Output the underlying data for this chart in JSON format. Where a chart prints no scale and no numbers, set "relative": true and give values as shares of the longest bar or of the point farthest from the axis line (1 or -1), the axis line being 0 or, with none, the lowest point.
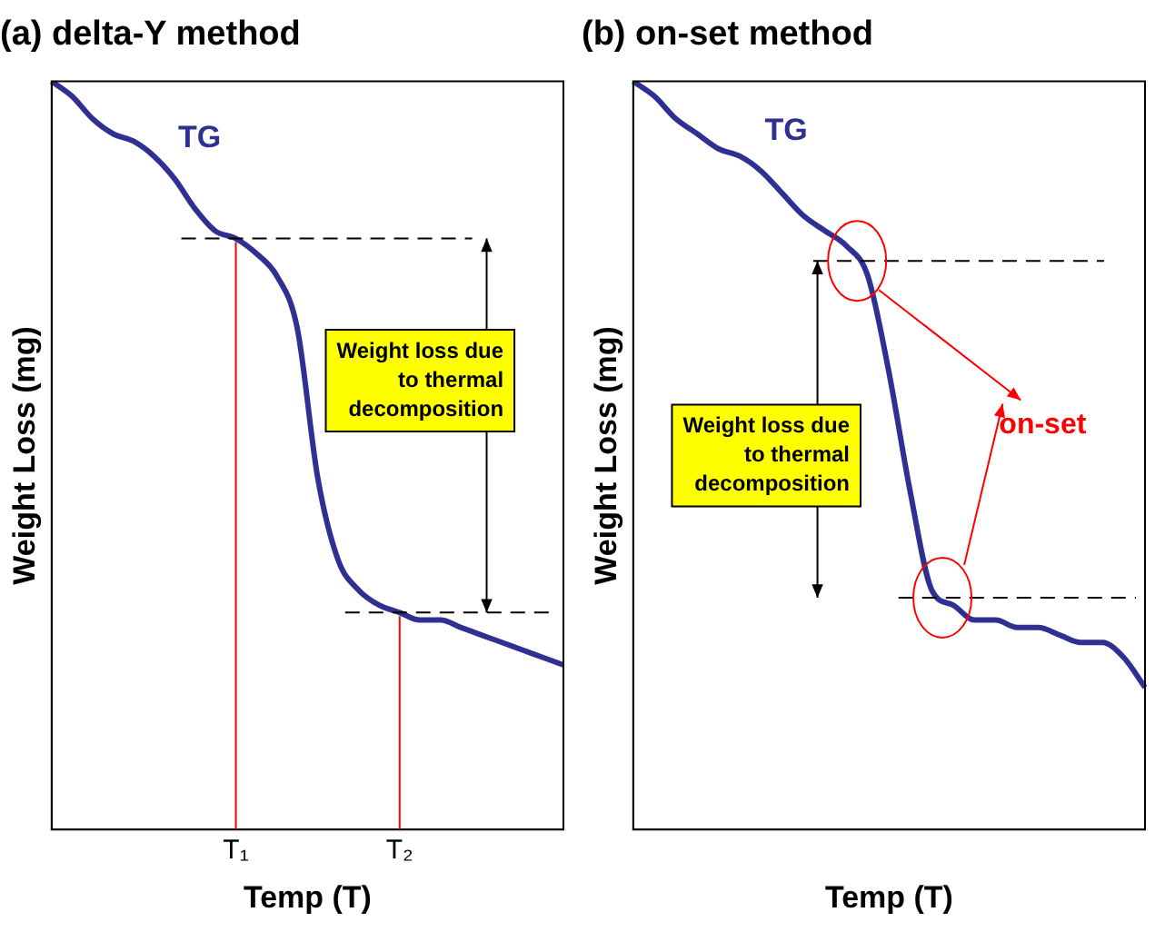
{
  "chart_data": [
    {
      "type": "line",
      "title": "(a) delta-Y method",
      "xlabel": "Temp (T)",
      "ylabel": "Weight Loss (mg)",
      "relative": true,
      "legend": false,
      "grid": false,
      "marker": "none",
      "categories": [
        null,
        null,
        null,
        null,
        null,
        null,
        null,
        null,
        null,
        "T₁",
        null,
        null,
        null,
        null,
        null,
        null,
        null,
        "T₂",
        null,
        null,
        null,
        null,
        null,
        null,
        null,
        null
      ],
      "series": [
        {
          "name": "TG",
          "color": "#2e3192",
          "values": [
            1,
            0.98,
            0.95,
            0.93,
            0.92,
            0.9,
            0.87,
            0.83,
            0.8,
            0.79,
            0.77,
            0.74,
            0.67,
            0.47,
            0.36,
            0.32,
            0.3,
            0.29,
            0.28,
            0.28,
            0.27,
            0.26,
            0.25,
            0.24,
            0.23,
            0.22
          ]
        }
      ],
      "ref_lines": [
        {
          "axis": "y",
          "value": 0.79,
          "color": "#000000",
          "line_style": "dashed"
        },
        {
          "axis": "y",
          "value": 0.29,
          "color": "#000000",
          "line_style": "dashed"
        },
        {
          "axis": "x",
          "value": "T₁",
          "color": "#ff0000",
          "line_style": "solid"
        },
        {
          "axis": "x",
          "value": "T₂",
          "color": "#ff0000",
          "line_style": "solid"
        }
      ],
      "annotations": [
        "Weight loss due to thermal decomposition"
      ]
    },
    {
      "type": "line",
      "title": "(b) on-set method",
      "xlabel": "Temp (T)",
      "ylabel": "Weight Loss (mg)",
      "relative": true,
      "legend": false,
      "grid": false,
      "marker": "none",
      "categories": [
        null,
        null,
        null,
        null,
        null,
        null,
        null,
        null,
        null,
        null,
        null,
        null,
        null,
        null,
        null,
        null,
        null,
        null,
        null,
        null,
        null,
        null,
        null,
        null,
        null
      ],
      "series": [
        {
          "name": "TG",
          "color": "#2e3192",
          "values": [
            1,
            0.98,
            0.95,
            0.93,
            0.91,
            0.9,
            0.88,
            0.85,
            0.82,
            0.8,
            0.78,
            0.74,
            0.61,
            0.45,
            0.32,
            0.3,
            0.28,
            0.28,
            0.27,
            0.27,
            0.26,
            0.25,
            0.25,
            0.23,
            0.19
          ]
        }
      ],
      "ref_lines": [
        {
          "axis": "y",
          "value": 0.76,
          "color": "#000000",
          "line_style": "dashed"
        },
        {
          "axis": "y",
          "value": 0.31,
          "color": "#000000",
          "line_style": "dashed"
        }
      ],
      "annotations": [
        "Weight loss due to thermal decomposition",
        "on-set"
      ]
    }
  ]
}
